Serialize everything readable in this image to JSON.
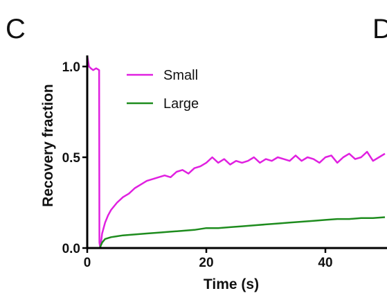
{
  "panel_letter": "C",
  "next_panel_letter": "D",
  "colors": {
    "small": "#e020e0",
    "large": "#1e8c1e",
    "axis": "#000000"
  },
  "chart_data": {
    "type": "line",
    "title": "",
    "xlabel": "Time (s)",
    "ylabel": "Recovery fraction",
    "xlim": [
      0,
      50
    ],
    "ylim": [
      0,
      1.05
    ],
    "xticks": [
      0,
      20,
      40
    ],
    "xtick_labels": [
      "0",
      "20",
      "40"
    ],
    "yticks": [
      0.0,
      0.5,
      1.0
    ],
    "ytick_labels": [
      "0.0",
      "0.5",
      "1.0"
    ],
    "legend": {
      "position": "top-left",
      "entries": [
        "Small",
        "Large"
      ]
    },
    "grid": false,
    "series": [
      {
        "name": "Small",
        "color": "#e020e0",
        "x": [
          0,
          0.3,
          0.6,
          1,
          1.5,
          2,
          2.05,
          2.2,
          2.5,
          3,
          3.5,
          4,
          5,
          6,
          7,
          8,
          9,
          10,
          11,
          12,
          13,
          14,
          15,
          16,
          17,
          18,
          19,
          20,
          21,
          22,
          23,
          24,
          25,
          26,
          27,
          28,
          29,
          30,
          31,
          32,
          33,
          34,
          35,
          36,
          37,
          38,
          39,
          40,
          41,
          42,
          43,
          44,
          45,
          46,
          47,
          48,
          49,
          50
        ],
        "y": [
          1.06,
          1.0,
          0.99,
          0.98,
          0.99,
          0.98,
          0.03,
          0.0,
          0.08,
          0.14,
          0.18,
          0.21,
          0.25,
          0.28,
          0.3,
          0.33,
          0.35,
          0.37,
          0.38,
          0.39,
          0.4,
          0.39,
          0.42,
          0.43,
          0.41,
          0.44,
          0.45,
          0.47,
          0.5,
          0.47,
          0.49,
          0.46,
          0.48,
          0.47,
          0.48,
          0.5,
          0.47,
          0.49,
          0.48,
          0.5,
          0.49,
          0.48,
          0.51,
          0.48,
          0.5,
          0.49,
          0.47,
          0.5,
          0.51,
          0.47,
          0.5,
          0.52,
          0.49,
          0.5,
          0.53,
          0.48,
          0.5,
          0.52
        ]
      },
      {
        "name": "Large",
        "color": "#1e8c1e",
        "x": [
          2.1,
          2.5,
          3,
          4,
          5,
          6,
          8,
          10,
          12,
          14,
          16,
          18,
          20,
          22,
          24,
          26,
          28,
          30,
          32,
          34,
          36,
          38,
          40,
          42,
          44,
          46,
          48,
          50
        ],
        "y": [
          0.0,
          0.03,
          0.05,
          0.06,
          0.065,
          0.07,
          0.075,
          0.08,
          0.085,
          0.09,
          0.095,
          0.1,
          0.11,
          0.11,
          0.115,
          0.12,
          0.125,
          0.13,
          0.135,
          0.14,
          0.145,
          0.15,
          0.155,
          0.16,
          0.16,
          0.165,
          0.165,
          0.17
        ]
      }
    ]
  }
}
